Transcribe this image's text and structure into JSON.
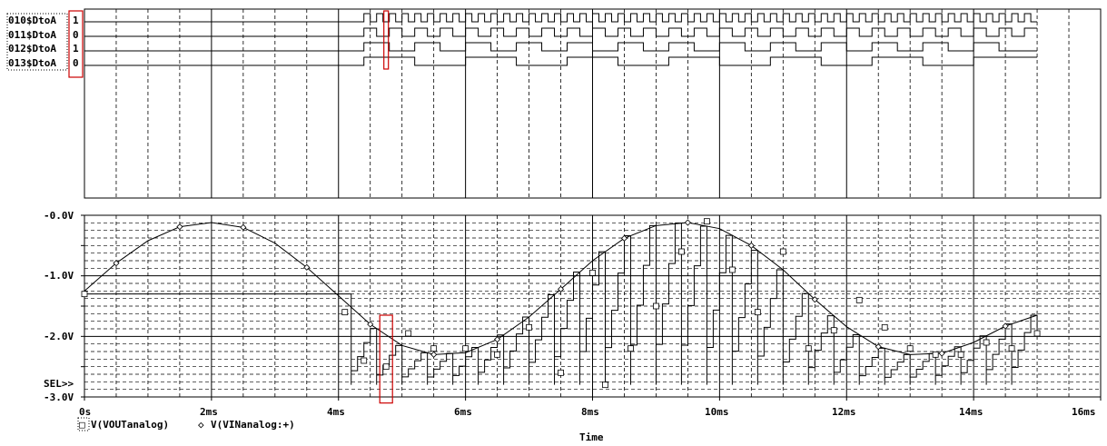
{
  "digital": {
    "signals": [
      {
        "name": "010$DtoA",
        "value": "1"
      },
      {
        "name": "011$DtoA",
        "value": "0"
      },
      {
        "name": "012$DtoA",
        "value": "1"
      },
      {
        "name": "013$DtoA",
        "value": "0"
      }
    ]
  },
  "analog": {
    "y_ticks": [
      "-0.0V",
      "-1.0V",
      "-2.0V",
      "-3.0V"
    ],
    "sel_marker": "SEL>>"
  },
  "x_axis": {
    "label": "Time",
    "ticks": [
      "0s",
      "2ms",
      "4ms",
      "6ms",
      "8ms",
      "10ms",
      "12ms",
      "14ms",
      "16ms"
    ]
  },
  "legend": [
    {
      "marker": "□",
      "text": "V(VOUTanalog)"
    },
    {
      "marker": "◇",
      "text": "V(VINanalog:+)"
    }
  ],
  "cursor": {
    "time_ms": 4.75,
    "color": "#cc0000"
  },
  "chart_data": [
    {
      "type": "line",
      "title": "",
      "xlabel": "Time",
      "ylabel": "",
      "xlim": [
        0,
        16
      ],
      "x_unit": "ms",
      "series": [
        {
          "name": "010$DtoA",
          "start_ms": 4.4,
          "end_ms": 15,
          "period_ms": 0.2
        },
        {
          "name": "011$DtoA",
          "start_ms": 4.4,
          "end_ms": 15,
          "period_ms": 0.4
        },
        {
          "name": "012$DtoA",
          "start_ms": 4.4,
          "end_ms": 15,
          "period_ms": 0.8
        },
        {
          "name": "013$DtoA",
          "start_ms": 4.4,
          "end_ms": 15,
          "period_ms": 1.6
        }
      ]
    },
    {
      "type": "line",
      "title": "",
      "xlabel": "Time",
      "ylabel": "",
      "xlim": [
        0,
        16
      ],
      "ylim": [
        -3,
        0
      ],
      "x_unit": "ms",
      "y_unit": "V",
      "grid": true,
      "series": [
        {
          "name": "V(VINanalog:+)",
          "marker": "diamond",
          "x": [
            0,
            0.5,
            1,
            1.5,
            2,
            2.5,
            3,
            3.5,
            4,
            4.5,
            5,
            5.5,
            6,
            6.5,
            7,
            7.5,
            8,
            8.5,
            9,
            9.5,
            10,
            10.5,
            11,
            11.5,
            12,
            12.5,
            13,
            13.5,
            14,
            14.5,
            15
          ],
          "y": [
            -1.25,
            -0.79,
            -0.42,
            -0.19,
            -0.12,
            -0.2,
            -0.46,
            -0.86,
            -1.33,
            -1.8,
            -2.15,
            -2.3,
            -2.27,
            -2.05,
            -1.68,
            -1.22,
            -0.75,
            -0.38,
            -0.17,
            -0.12,
            -0.22,
            -0.5,
            -0.9,
            -1.39,
            -1.84,
            -2.17,
            -2.3,
            -2.28,
            -2.1,
            -1.83,
            -1.65
          ]
        },
        {
          "name": "V(VOUTanalog)",
          "marker": "square",
          "x": [
            0,
            4.1,
            4.4,
            4.75,
            5.1,
            5.5,
            6.0,
            6.5,
            7.0,
            7.5,
            8.0,
            8.2,
            8.6,
            9.0,
            9.4,
            9.8,
            10.2,
            10.6,
            11.0,
            11.4,
            11.8,
            12.2,
            12.6,
            13.0,
            13.4,
            13.8,
            14.2,
            14.6,
            15
          ],
          "y": [
            -1.3,
            -1.6,
            -2.4,
            -2.5,
            -1.95,
            -2.2,
            -2.2,
            -2.3,
            -1.85,
            -2.6,
            -0.95,
            -2.8,
            -2.2,
            -1.5,
            -0.6,
            -0.1,
            -0.9,
            -1.6,
            -0.6,
            -2.2,
            -1.9,
            -1.4,
            -1.85,
            -2.2,
            -2.3,
            -2.3,
            -2.1,
            -2.2,
            -1.95
          ]
        }
      ]
    }
  ]
}
